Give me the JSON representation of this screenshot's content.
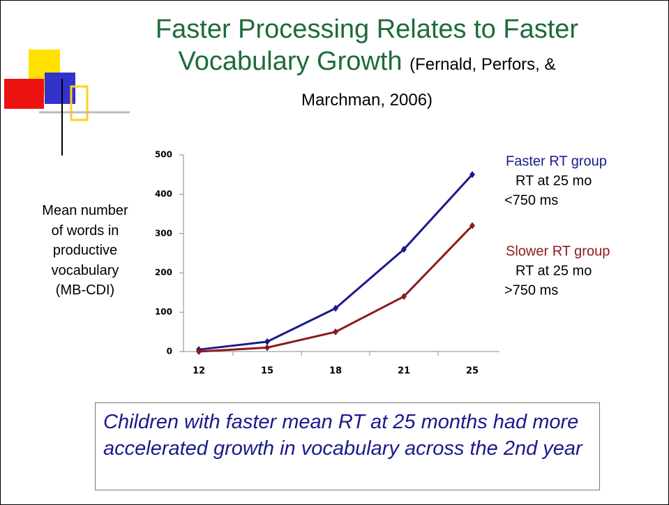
{
  "chart_data": {
    "type": "line",
    "title": "Faster Processing Relates to Faster Vocabulary Growth",
    "citation": "(Fernald, Perfors, & Marchman, 2006)",
    "y_label": "Mean number of words in productive vocabulary (MB-CDI)",
    "categories": [
      "12",
      "15",
      "18",
      "21",
      "25"
    ],
    "series": [
      {
        "name": "Faster RT group",
        "note": [
          "RT at 25 mo",
          "<750 ms"
        ],
        "color": "#1a1a8c",
        "values": [
          5,
          25,
          110,
          260,
          450
        ]
      },
      {
        "name": "Slower RT group",
        "note": [
          "RT at 25 mo",
          ">750 ms"
        ],
        "color": "#8b1a1a",
        "values": [
          0,
          10,
          50,
          140,
          320
        ]
      }
    ],
    "ylim": [
      0,
      500
    ],
    "yticks": [
      0,
      100,
      200,
      300,
      400,
      500
    ],
    "grid": false,
    "caption": "Children with faster mean RT at 25 months had more accelerated growth in vocabulary across the 2nd year"
  }
}
